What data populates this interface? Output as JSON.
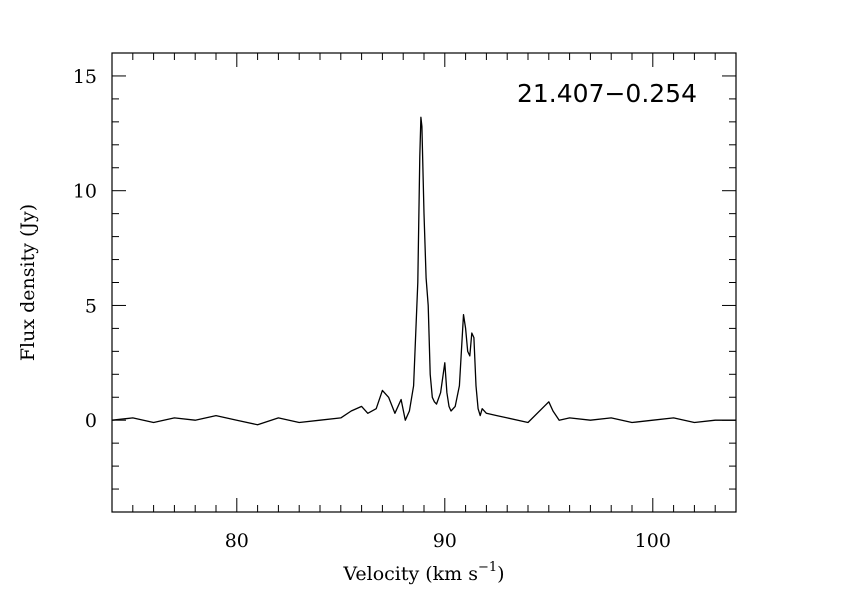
{
  "chart_data": {
    "type": "line",
    "title": "",
    "annotation": "21.407−0.254",
    "xlabel": "Velocity (km s",
    "xlabel_sup": "−1",
    "xlabel_close": ")",
    "ylabel": "Flux density (Jy)",
    "xlim": [
      74,
      104
    ],
    "ylim": [
      -4,
      16
    ],
    "x_major_ticks": [
      80,
      90,
      100
    ],
    "x_tick_labels": [
      "80",
      "90",
      "100"
    ],
    "x_minor_step": 1,
    "y_major_ticks": [
      0,
      5,
      10,
      15
    ],
    "y_tick_labels": [
      "0",
      "5",
      "10",
      "15"
    ],
    "y_minor_step": 1,
    "grid": false,
    "line_color": "#000000",
    "series": [
      {
        "x": [
          74.0,
          75.0,
          76.0,
          77.0,
          78.0,
          79.0,
          80.0,
          81.0,
          82.0,
          83.0,
          84.0,
          85.0,
          85.5,
          86.0,
          86.3,
          86.7,
          87.0,
          87.3,
          87.6,
          87.9,
          88.1,
          88.3,
          88.5,
          88.7,
          88.8,
          88.85,
          88.9,
          89.0,
          89.1,
          89.2,
          89.3,
          89.4,
          89.5,
          89.6,
          89.8,
          90.0,
          90.1,
          90.2,
          90.3,
          90.5,
          90.7,
          90.9,
          91.0,
          91.1,
          91.2,
          91.3,
          91.4,
          91.5,
          91.6,
          91.7,
          91.8,
          92.0,
          92.5,
          93.0,
          94.0,
          95.0,
          95.2,
          95.5,
          96.0,
          97.0,
          98.0,
          99.0,
          100.0,
          101.0,
          102.0,
          103.0,
          104.0
        ],
        "y": [
          0.0,
          0.1,
          -0.1,
          0.1,
          0.0,
          0.2,
          0.0,
          -0.2,
          0.1,
          -0.1,
          0.0,
          0.1,
          0.4,
          0.6,
          0.3,
          0.5,
          1.3,
          1.0,
          0.3,
          0.9,
          0.0,
          0.4,
          1.5,
          6.0,
          11.5,
          13.2,
          12.8,
          9.0,
          6.2,
          5.0,
          2.0,
          1.0,
          0.8,
          0.7,
          1.2,
          2.5,
          1.2,
          0.6,
          0.4,
          0.6,
          1.5,
          4.6,
          4.0,
          3.0,
          2.8,
          3.8,
          3.6,
          1.5,
          0.5,
          0.2,
          0.5,
          0.3,
          0.2,
          0.1,
          -0.1,
          0.8,
          0.4,
          0.0,
          0.1,
          0.0,
          0.1,
          -0.1,
          0.0,
          0.1,
          -0.1,
          0.0,
          0.0
        ]
      }
    ]
  }
}
